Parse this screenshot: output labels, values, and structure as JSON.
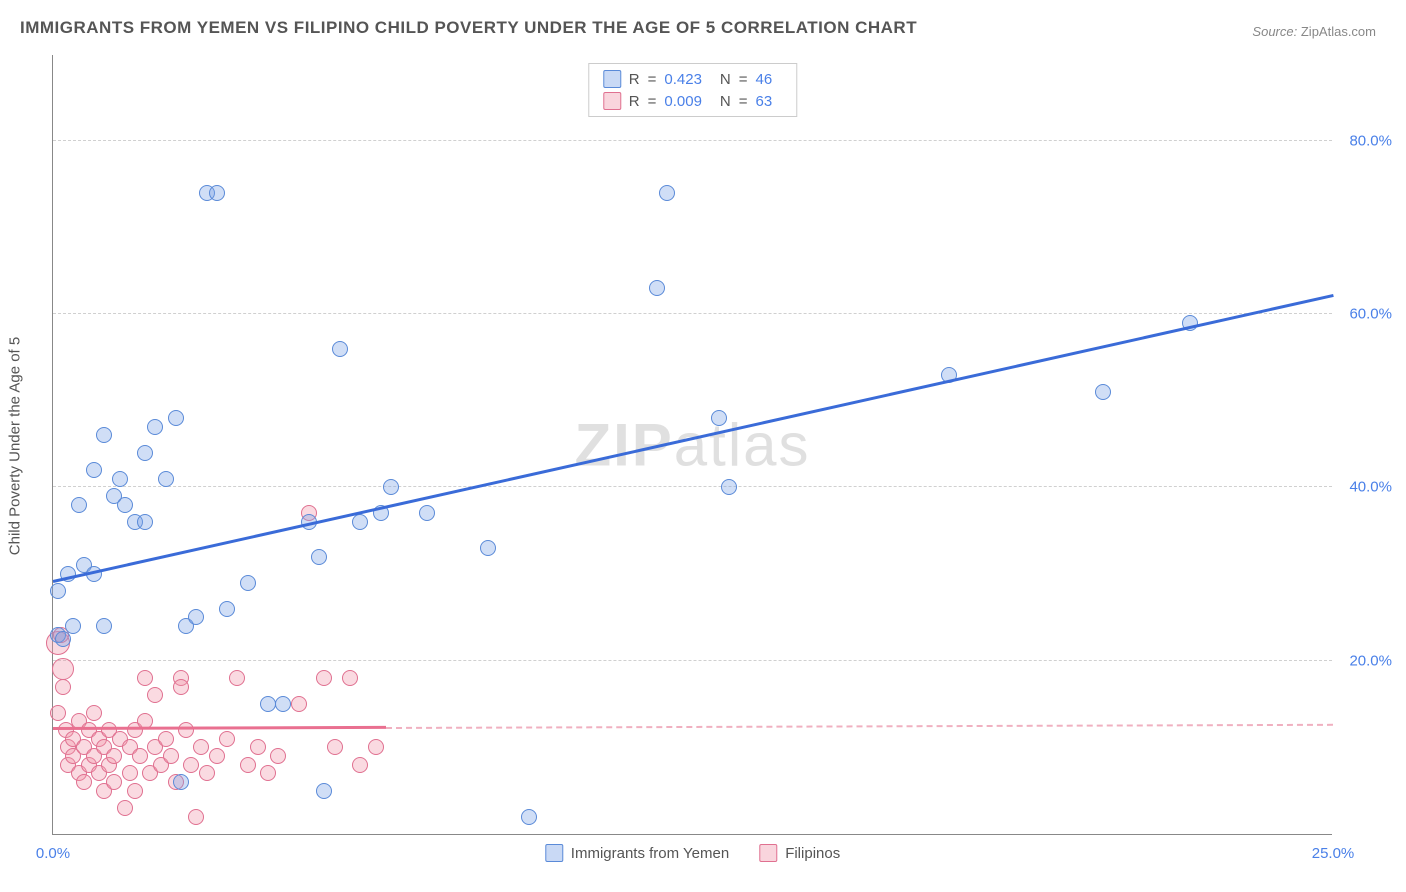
{
  "title": "IMMIGRANTS FROM YEMEN VS FILIPINO CHILD POVERTY UNDER THE AGE OF 5 CORRELATION CHART",
  "source": {
    "prefix": "Source:",
    "name": "ZipAtlas.com"
  },
  "watermark": {
    "bold": "ZIP",
    "rest": "atlas"
  },
  "chart": {
    "type": "scatter",
    "y_axis_title": "Child Poverty Under the Age of 5",
    "xlim": [
      0,
      25
    ],
    "ylim": [
      0,
      90
    ],
    "x_ticks": [
      {
        "v": 0,
        "label": "0.0%"
      },
      {
        "v": 25,
        "label": "25.0%"
      }
    ],
    "y_ticks": [
      {
        "v": 20,
        "label": "20.0%"
      },
      {
        "v": 40,
        "label": "40.0%"
      },
      {
        "v": 60,
        "label": "60.0%"
      },
      {
        "v": 80,
        "label": "80.0%"
      }
    ],
    "grid_color": "#d0d0d0",
    "axis_color": "#888888",
    "background_color": "#ffffff",
    "tick_label_color": "#4a80e8",
    "tick_label_fontsize": 15,
    "axis_title_fontsize": 15,
    "axis_title_color": "#555555",
    "marker_radius_base": 8,
    "series": {
      "yemen": {
        "label": "Immigrants from Yemen",
        "fill_color": "rgba(120,160,230,0.35)",
        "stroke_color": "#5a8ad8",
        "line_color": "#3a6bd8",
        "R": "0.423",
        "N": "46",
        "regression": {
          "x1": 0,
          "y1": 29,
          "x2": 25,
          "y2": 62,
          "solid_to_x": 25
        },
        "points": [
          {
            "x": 0.1,
            "y": 28
          },
          {
            "x": 0.1,
            "y": 23
          },
          {
            "x": 0.2,
            "y": 22.5
          },
          {
            "x": 0.4,
            "y": 24
          },
          {
            "x": 0.3,
            "y": 30
          },
          {
            "x": 0.6,
            "y": 31
          },
          {
            "x": 0.8,
            "y": 42
          },
          {
            "x": 1.0,
            "y": 46
          },
          {
            "x": 1.2,
            "y": 39
          },
          {
            "x": 1.3,
            "y": 41
          },
          {
            "x": 1.4,
            "y": 38
          },
          {
            "x": 1.6,
            "y": 36
          },
          {
            "x": 1.8,
            "y": 44
          },
          {
            "x": 2.0,
            "y": 47
          },
          {
            "x": 2.2,
            "y": 41
          },
          {
            "x": 2.4,
            "y": 48
          },
          {
            "x": 2.6,
            "y": 24
          },
          {
            "x": 2.8,
            "y": 25
          },
          {
            "x": 3.0,
            "y": 74
          },
          {
            "x": 3.2,
            "y": 74
          },
          {
            "x": 3.4,
            "y": 26
          },
          {
            "x": 3.8,
            "y": 29
          },
          {
            "x": 4.2,
            "y": 15
          },
          {
            "x": 4.5,
            "y": 15
          },
          {
            "x": 5.0,
            "y": 36
          },
          {
            "x": 5.2,
            "y": 32
          },
          {
            "x": 5.3,
            "y": 5
          },
          {
            "x": 5.6,
            "y": 56
          },
          {
            "x": 6.0,
            "y": 36
          },
          {
            "x": 6.4,
            "y": 37
          },
          {
            "x": 6.6,
            "y": 40
          },
          {
            "x": 7.3,
            "y": 37
          },
          {
            "x": 8.5,
            "y": 33
          },
          {
            "x": 9.3,
            "y": 2
          },
          {
            "x": 11.8,
            "y": 63
          },
          {
            "x": 12.0,
            "y": 74
          },
          {
            "x": 13.0,
            "y": 48
          },
          {
            "x": 13.2,
            "y": 40
          },
          {
            "x": 17.5,
            "y": 53
          },
          {
            "x": 20.5,
            "y": 51
          },
          {
            "x": 22.2,
            "y": 59
          },
          {
            "x": 1.0,
            "y": 24
          },
          {
            "x": 0.5,
            "y": 38
          },
          {
            "x": 1.8,
            "y": 36
          },
          {
            "x": 2.5,
            "y": 6
          },
          {
            "x": 0.8,
            "y": 30
          }
        ]
      },
      "filipinos": {
        "label": "Filipinos",
        "fill_color": "rgba(240,150,170,0.35)",
        "stroke_color": "#e07090",
        "line_color": "#e97090",
        "line_color_dashed": "#f0b0c0",
        "R": "0.009",
        "N": "63",
        "regression": {
          "x1": 0,
          "y1": 12,
          "x2": 25,
          "y2": 12.5,
          "solid_to_x": 6.5
        },
        "points": [
          {
            "x": 0.1,
            "y": 14
          },
          {
            "x": 0.1,
            "y": 22,
            "r": 12
          },
          {
            "x": 0.15,
            "y": 23
          },
          {
            "x": 0.2,
            "y": 19,
            "r": 11
          },
          {
            "x": 0.2,
            "y": 17
          },
          {
            "x": 0.25,
            "y": 12
          },
          {
            "x": 0.3,
            "y": 10
          },
          {
            "x": 0.3,
            "y": 8
          },
          {
            "x": 0.4,
            "y": 11
          },
          {
            "x": 0.4,
            "y": 9
          },
          {
            "x": 0.5,
            "y": 13
          },
          {
            "x": 0.5,
            "y": 7
          },
          {
            "x": 0.6,
            "y": 10
          },
          {
            "x": 0.6,
            "y": 6
          },
          {
            "x": 0.7,
            "y": 12
          },
          {
            "x": 0.7,
            "y": 8
          },
          {
            "x": 0.8,
            "y": 9
          },
          {
            "x": 0.8,
            "y": 14
          },
          {
            "x": 0.9,
            "y": 11
          },
          {
            "x": 0.9,
            "y": 7
          },
          {
            "x": 1.0,
            "y": 10
          },
          {
            "x": 1.0,
            "y": 5
          },
          {
            "x": 1.1,
            "y": 8
          },
          {
            "x": 1.1,
            "y": 12
          },
          {
            "x": 1.2,
            "y": 9
          },
          {
            "x": 1.2,
            "y": 6
          },
          {
            "x": 1.3,
            "y": 11
          },
          {
            "x": 1.4,
            "y": 3
          },
          {
            "x": 1.5,
            "y": 10
          },
          {
            "x": 1.5,
            "y": 7
          },
          {
            "x": 1.6,
            "y": 12
          },
          {
            "x": 1.6,
            "y": 5
          },
          {
            "x": 1.7,
            "y": 9
          },
          {
            "x": 1.8,
            "y": 13
          },
          {
            "x": 1.8,
            "y": 18
          },
          {
            "x": 1.9,
            "y": 7
          },
          {
            "x": 2.0,
            "y": 10
          },
          {
            "x": 2.0,
            "y": 16
          },
          {
            "x": 2.1,
            "y": 8
          },
          {
            "x": 2.2,
            "y": 11
          },
          {
            "x": 2.3,
            "y": 9
          },
          {
            "x": 2.4,
            "y": 6
          },
          {
            "x": 2.5,
            "y": 18
          },
          {
            "x": 2.5,
            "y": 17
          },
          {
            "x": 2.6,
            "y": 12
          },
          {
            "x": 2.7,
            "y": 8
          },
          {
            "x": 2.8,
            "y": 2
          },
          {
            "x": 2.9,
            "y": 10
          },
          {
            "x": 3.0,
            "y": 7
          },
          {
            "x": 3.2,
            "y": 9
          },
          {
            "x": 3.4,
            "y": 11
          },
          {
            "x": 3.6,
            "y": 18
          },
          {
            "x": 3.8,
            "y": 8
          },
          {
            "x": 4.0,
            "y": 10
          },
          {
            "x": 4.2,
            "y": 7
          },
          {
            "x": 4.4,
            "y": 9
          },
          {
            "x": 4.8,
            "y": 15
          },
          {
            "x": 5.0,
            "y": 37
          },
          {
            "x": 5.3,
            "y": 18
          },
          {
            "x": 5.5,
            "y": 10
          },
          {
            "x": 5.8,
            "y": 18
          },
          {
            "x": 6.0,
            "y": 8
          },
          {
            "x": 6.3,
            "y": 10
          }
        ]
      }
    },
    "legend_top": {
      "R_label": "R",
      "N_label": "N",
      "eq": "="
    }
  }
}
